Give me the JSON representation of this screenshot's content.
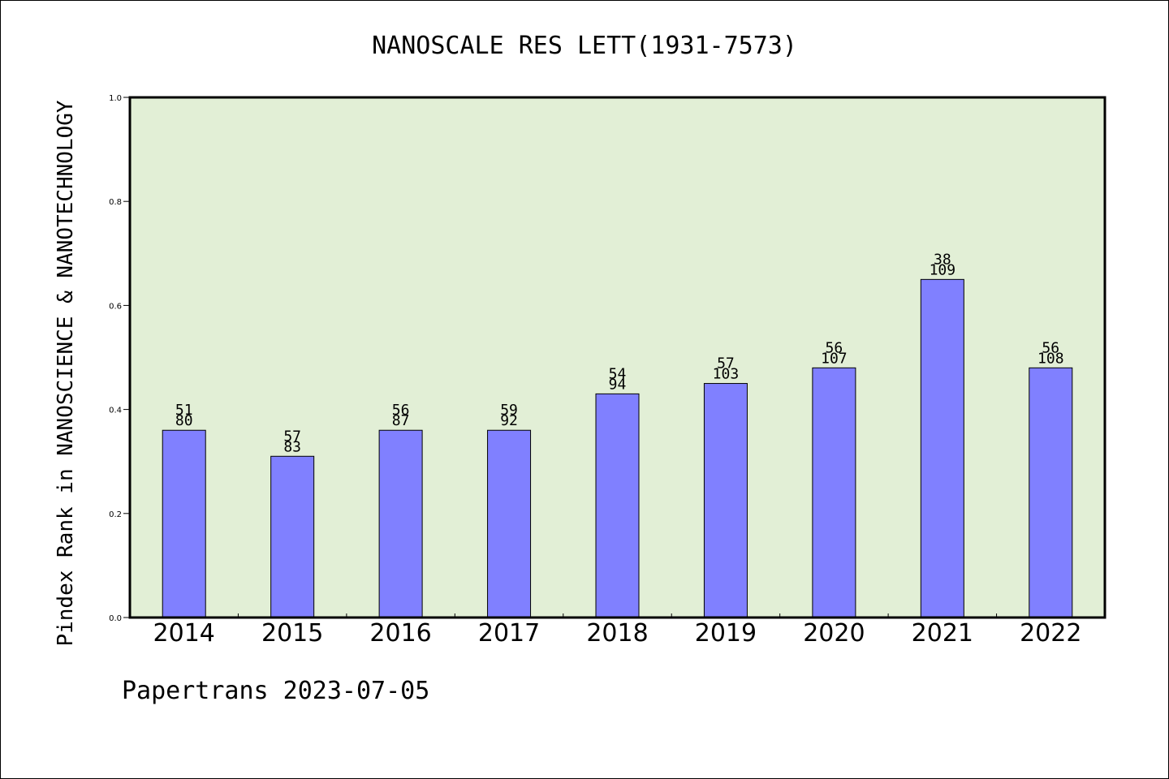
{
  "chart_data": {
    "type": "bar",
    "title": "NANOSCALE RES LETT(1931-7573)",
    "xlabel": "",
    "ylabel": "Pindex Rank in NANOSCIENCE & NANOTECHNOLOGY",
    "categories": [
      "2014",
      "2015",
      "2016",
      "2017",
      "2018",
      "2019",
      "2020",
      "2021",
      "2022"
    ],
    "values": [
      0.36,
      0.31,
      0.36,
      0.36,
      0.43,
      0.45,
      0.48,
      0.65,
      0.48
    ],
    "rank_labels": [
      "51",
      "57",
      "56",
      "59",
      "54",
      "57",
      "56",
      "38",
      "56"
    ],
    "total_labels": [
      "80",
      "83",
      "87",
      "92",
      "94",
      "103",
      "107",
      "109",
      "108"
    ],
    "ylim": [
      0.0,
      1.0
    ],
    "yticks": [
      "0.0",
      "0.2",
      "0.4",
      "0.6",
      "0.8",
      "1.0"
    ],
    "grid": false,
    "legend": "none",
    "colors": {
      "bar": "#8080ff",
      "plot_background": "#e2efd6",
      "axis": "#000000"
    }
  },
  "footer": {
    "note": "Papertrans 2023-07-05"
  }
}
